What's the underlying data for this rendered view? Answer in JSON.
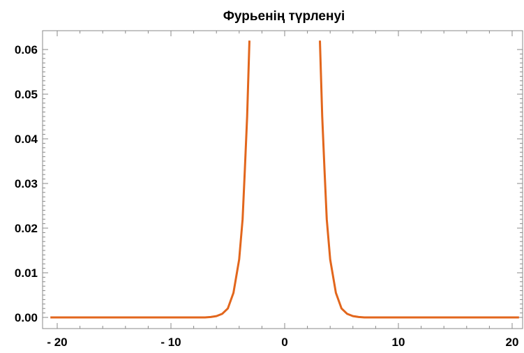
{
  "chart_data": {
    "type": "line",
    "title": "Фурьенің түрленуі",
    "xlabel": "",
    "ylabel": "",
    "xlim": [
      -21,
      21
    ],
    "ylim": [
      -0.002,
      0.062
    ],
    "x_ticks": [
      -20,
      -10,
      0,
      10,
      20
    ],
    "x_tick_labels": [
      "- 20",
      "- 10",
      "0",
      "10",
      "20"
    ],
    "y_ticks": [
      0.0,
      0.01,
      0.02,
      0.03,
      0.04,
      0.05,
      0.06
    ],
    "y_tick_labels": [
      "0.00",
      "0.01",
      "0.02",
      "0.03",
      "0.04",
      "0.05",
      "0.06"
    ],
    "grid": false,
    "series": [
      {
        "color": "#e2661c",
        "points": [
          [
            -20.6,
            0.0
          ],
          [
            -10,
            0.0
          ],
          [
            -7.0,
            0.0
          ],
          [
            -6.5,
            0.0001
          ],
          [
            -6.0,
            0.0003
          ],
          [
            -5.5,
            0.0008
          ],
          [
            -5.0,
            0.002
          ],
          [
            -4.5,
            0.0055
          ],
          [
            -4.0,
            0.013
          ],
          [
            -3.7,
            0.022
          ],
          [
            -3.5,
            0.033
          ],
          [
            -3.3,
            0.045
          ],
          [
            -3.1,
            0.062
          ]
        ]
      },
      {
        "color": "#e2661c",
        "points": [
          [
            3.1,
            0.062
          ],
          [
            3.3,
            0.045
          ],
          [
            3.5,
            0.033
          ],
          [
            3.7,
            0.022
          ],
          [
            4.0,
            0.013
          ],
          [
            4.5,
            0.0055
          ],
          [
            5.0,
            0.002
          ],
          [
            5.5,
            0.0008
          ],
          [
            6.0,
            0.0003
          ],
          [
            6.5,
            0.0001
          ],
          [
            7.0,
            0.0
          ],
          [
            10,
            0.0
          ],
          [
            20.6,
            0.0
          ]
        ]
      }
    ]
  }
}
